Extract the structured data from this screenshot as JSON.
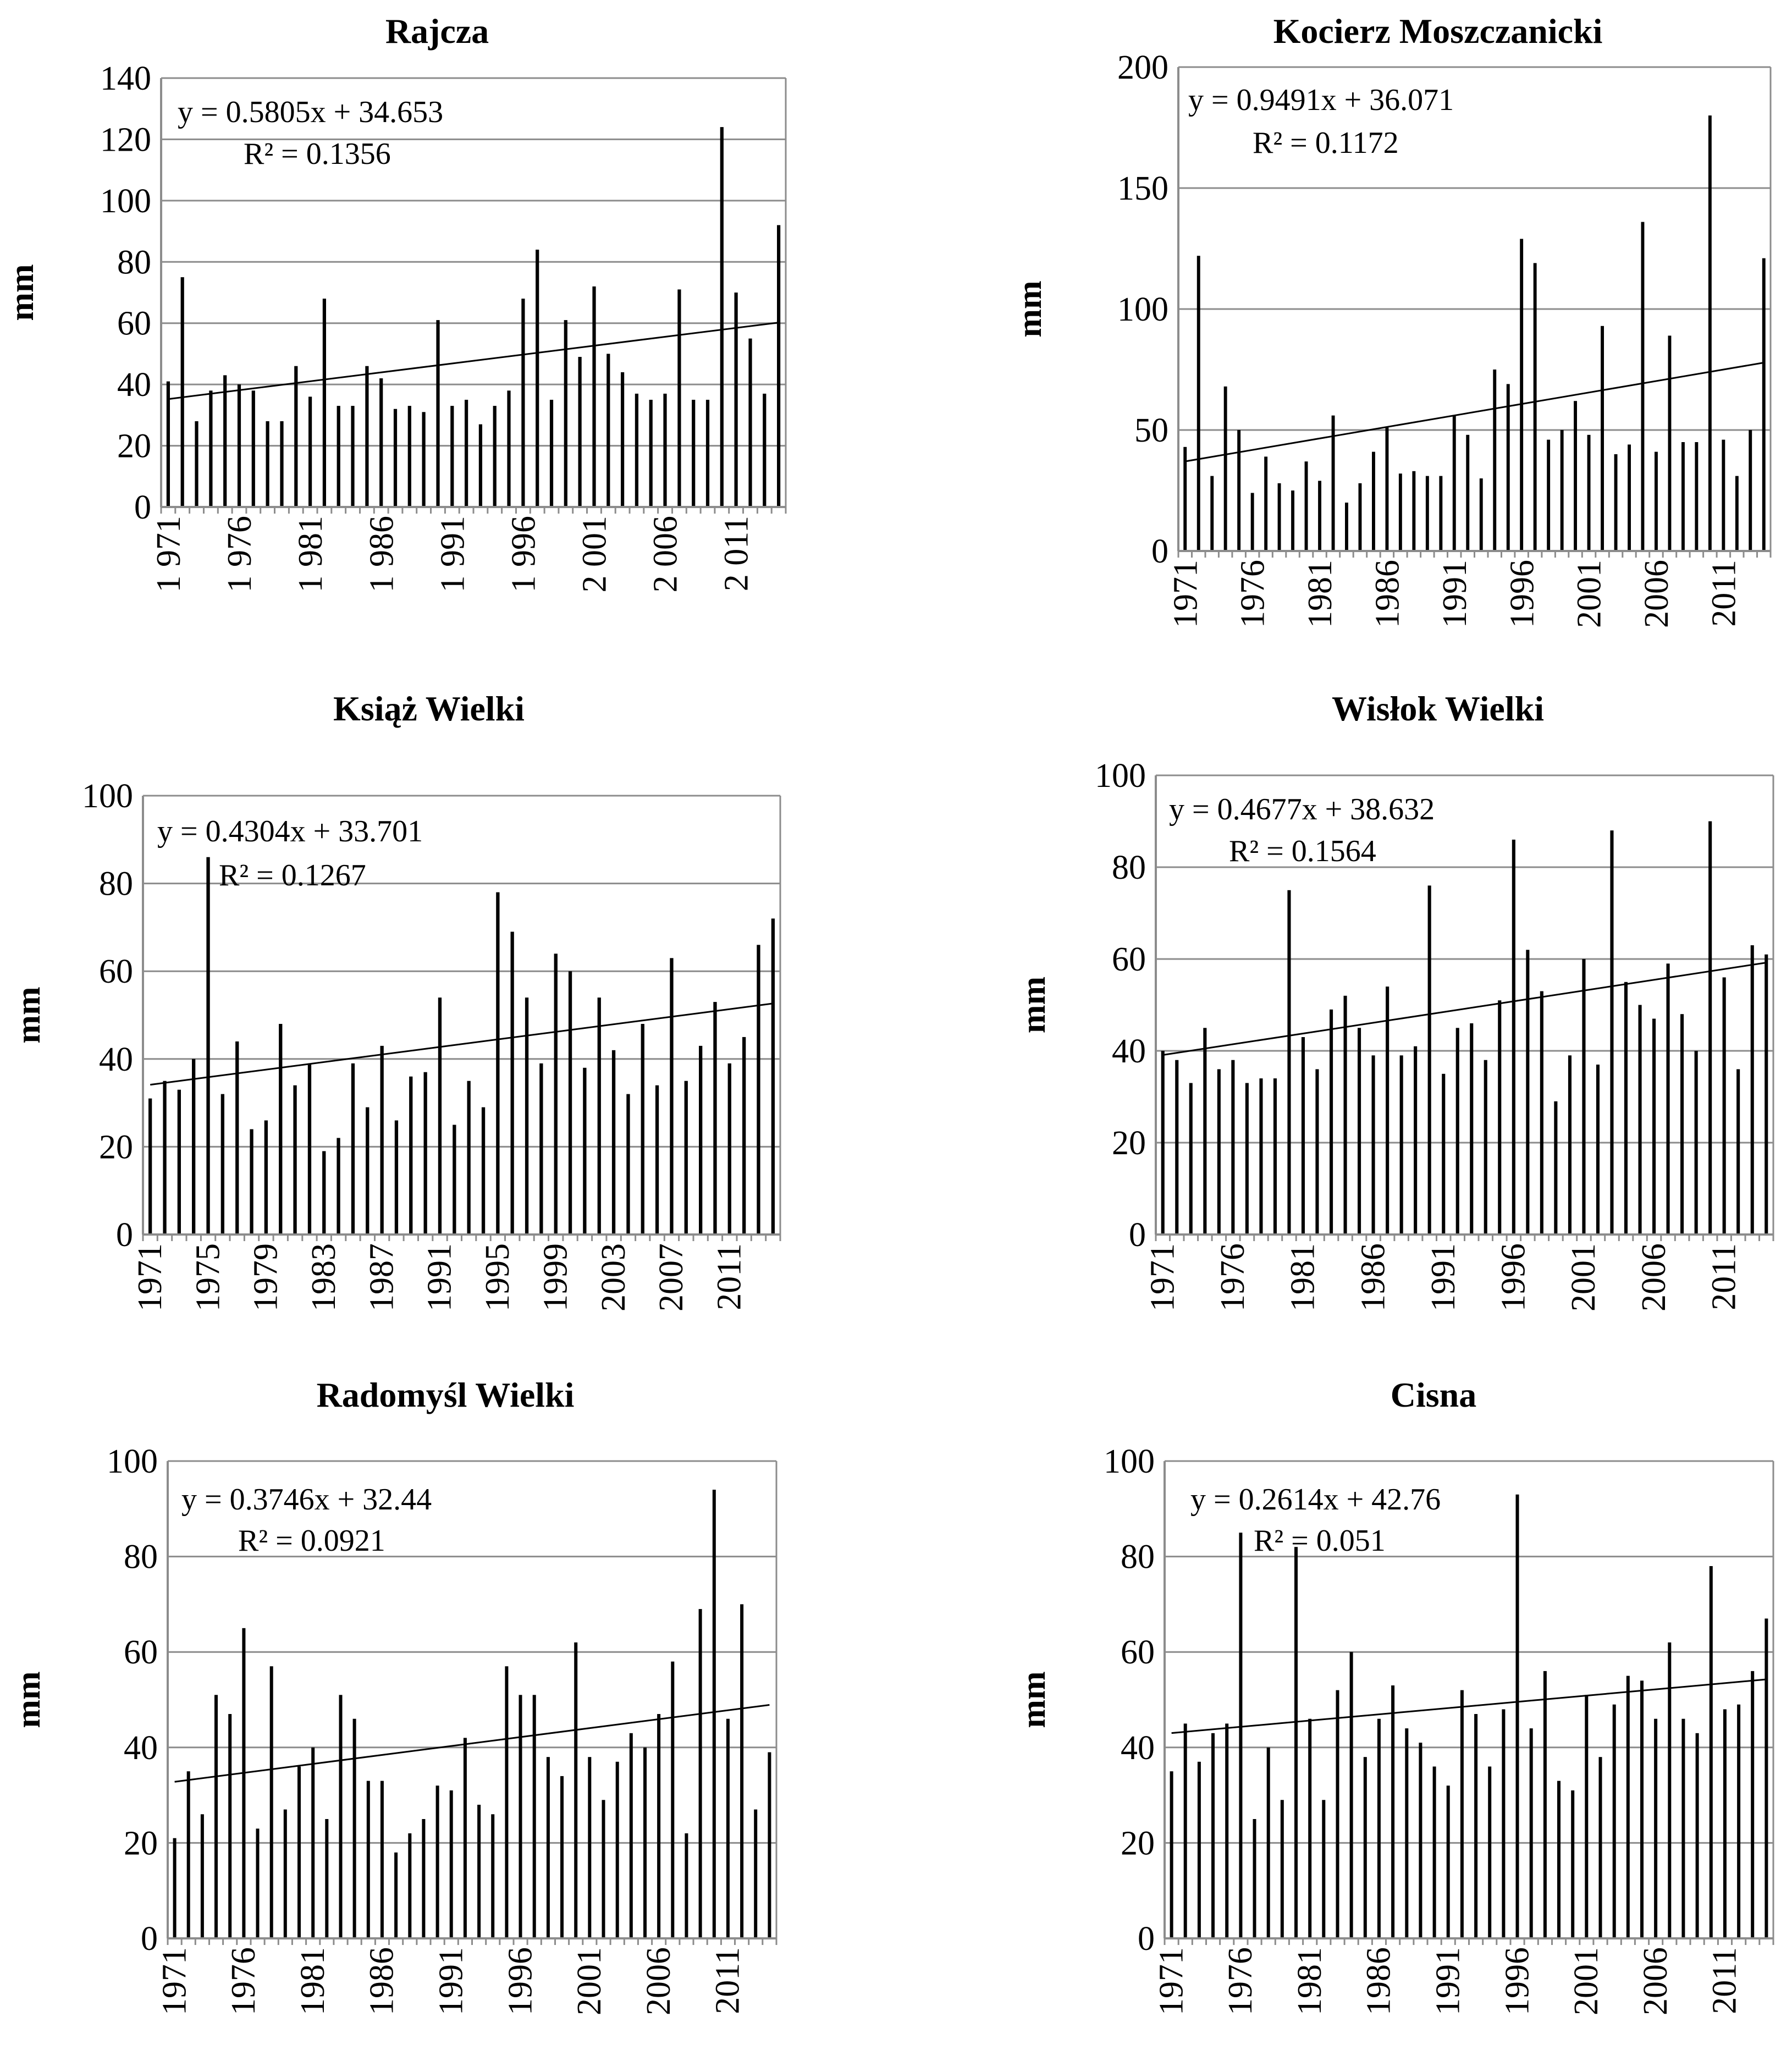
{
  "chart_data": [
    {
      "type": "bar",
      "title": "Rajcza",
      "ylabel": "mm",
      "xlabel": "",
      "ylim": [
        0,
        140
      ],
      "yticks": [
        0,
        20,
        40,
        60,
        80,
        100,
        120,
        140
      ],
      "x_start": 1971,
      "x_tick_years": [
        1971,
        1976,
        1981,
        1986,
        1991,
        1996,
        2001,
        2006,
        2011
      ],
      "x_tick_labels": [
        "1 971",
        "1 976",
        "1 981",
        "1 986",
        "1 991",
        "1 996",
        "2 001",
        "2 006",
        "2 011"
      ],
      "values": [
        41,
        75,
        28,
        38,
        43,
        40,
        38,
        28,
        28,
        46,
        36,
        68,
        33,
        33,
        46,
        42,
        32,
        33,
        31,
        61,
        33,
        35,
        27,
        33,
        38,
        68,
        84,
        35,
        61,
        49,
        72,
        50,
        44,
        37,
        35,
        37,
        71,
        35,
        35,
        124,
        70,
        55,
        37,
        92
      ],
      "trendline": {
        "slope": 0.5805,
        "intercept": 34.653
      },
      "equation": "y = 0.5805x + 34.653",
      "r2": "R² = 0.1356",
      "grid": true
    },
    {
      "type": "bar",
      "title": "Kocierz Moszczanicki",
      "ylabel": "mm",
      "xlabel": "",
      "ylim": [
        0,
        200
      ],
      "yticks": [
        0,
        50,
        100,
        150,
        200
      ],
      "x_start": 1971,
      "x_tick_years": [
        1971,
        1976,
        1981,
        1986,
        1991,
        1996,
        2001,
        2006,
        2011
      ],
      "x_tick_labels": [
        "1971",
        "1976",
        "1981",
        "1986",
        "1991",
        "1996",
        "2001",
        "2006",
        "2011"
      ],
      "values": [
        43,
        122,
        31,
        68,
        50,
        24,
        39,
        28,
        25,
        37,
        29,
        56,
        20,
        28,
        41,
        51,
        32,
        33,
        31,
        31,
        56,
        48,
        30,
        75,
        69,
        129,
        119,
        46,
        50,
        62,
        48,
        93,
        40,
        44,
        136,
        41,
        89,
        45,
        45,
        180,
        46,
        31,
        50,
        121
      ],
      "trendline": {
        "slope": 0.9491,
        "intercept": 36.071
      },
      "equation": "y = 0.9491x + 36.071",
      "r2": "R² = 0.1172",
      "grid": true
    },
    {
      "type": "bar",
      "title": "Książ Wielki",
      "ylabel": "mm",
      "xlabel": "",
      "ylim": [
        0,
        100
      ],
      "yticks": [
        0,
        20,
        40,
        60,
        80,
        100
      ],
      "x_start": 1971,
      "x_tick_years": [
        1971,
        1975,
        1979,
        1983,
        1987,
        1991,
        1995,
        1999,
        2003,
        2007,
        2011
      ],
      "x_tick_labels": [
        "1971",
        "1975",
        "1979",
        "1983",
        "1987",
        "1991",
        "1995",
        "1999",
        "2003",
        "2007",
        "2011"
      ],
      "values": [
        31,
        35,
        33,
        40,
        86,
        32,
        44,
        24,
        26,
        48,
        34,
        39,
        19,
        22,
        39,
        29,
        43,
        26,
        36,
        37,
        54,
        25,
        35,
        29,
        78,
        69,
        54,
        39,
        64,
        60,
        38,
        54,
        42,
        32,
        48,
        34,
        63,
        35,
        43,
        53,
        39,
        45,
        66,
        72
      ],
      "trendline": {
        "slope": 0.4304,
        "intercept": 33.701
      },
      "equation": "y = 0.4304x + 33.701",
      "r2": "R² = 0.1267",
      "grid": true
    },
    {
      "type": "bar",
      "title": "Wisłok Wielki",
      "ylabel": "mm",
      "xlabel": "",
      "ylim": [
        0,
        100
      ],
      "yticks": [
        0,
        20,
        40,
        60,
        80,
        100
      ],
      "x_start": 1971,
      "x_tick_years": [
        1971,
        1976,
        1981,
        1986,
        1991,
        1996,
        2001,
        2006,
        2011
      ],
      "x_tick_labels": [
        "1971",
        "1976",
        "1981",
        "1986",
        "1991",
        "1996",
        "2001",
        "2006",
        "2011"
      ],
      "values": [
        40,
        38,
        33,
        45,
        36,
        38,
        33,
        34,
        34,
        75,
        43,
        36,
        49,
        52,
        45,
        39,
        54,
        39,
        41,
        76,
        35,
        45,
        46,
        38,
        51,
        86,
        62,
        53,
        29,
        39,
        60,
        37,
        88,
        55,
        50,
        47,
        59,
        48,
        40,
        90,
        56,
        36,
        63,
        61
      ],
      "trendline": {
        "slope": 0.4677,
        "intercept": 38.632
      },
      "equation": "y = 0.4677x + 38.632",
      "r2": "R² = 0.1564",
      "grid": true
    },
    {
      "type": "bar",
      "title": "Radomyśl Wielki",
      "ylabel": "mm",
      "xlabel": "",
      "ylim": [
        0,
        100
      ],
      "yticks": [
        0,
        20,
        40,
        60,
        80,
        100
      ],
      "x_start": 1971,
      "x_tick_years": [
        1971,
        1976,
        1981,
        1986,
        1991,
        1996,
        2001,
        2006,
        2011
      ],
      "x_tick_labels": [
        "1971",
        "1976",
        "1981",
        "1986",
        "1991",
        "1996",
        "2001",
        "2006",
        "2011"
      ],
      "values": [
        21,
        35,
        26,
        51,
        47,
        65,
        23,
        57,
        27,
        36,
        40,
        25,
        51,
        46,
        33,
        33,
        18,
        22,
        25,
        32,
        31,
        42,
        28,
        26,
        57,
        51,
        51,
        38,
        34,
        62,
        38,
        29,
        37,
        43,
        40,
        47,
        58,
        22,
        69,
        94,
        46,
        70,
        27,
        39
      ],
      "trendline": {
        "slope": 0.3746,
        "intercept": 32.44
      },
      "equation": "y = 0.3746x + 32.44",
      "r2": "R² = 0.0921",
      "grid": true
    },
    {
      "type": "bar",
      "title": "Cisna",
      "ylabel": "mm",
      "xlabel": "",
      "ylim": [
        0,
        100
      ],
      "yticks": [
        0,
        20,
        40,
        60,
        80,
        100
      ],
      "x_start": 1971,
      "x_tick_years": [
        1971,
        1976,
        1981,
        1986,
        1991,
        1996,
        2001,
        2006,
        2011
      ],
      "x_tick_labels": [
        "1971",
        "1976",
        "1981",
        "1986",
        "1991",
        "1996",
        "2001",
        "2006",
        "2011"
      ],
      "values": [
        35,
        45,
        37,
        43,
        45,
        85,
        25,
        40,
        29,
        82,
        46,
        29,
        52,
        60,
        38,
        46,
        53,
        44,
        41,
        36,
        32,
        52,
        47,
        36,
        48,
        93,
        44,
        56,
        33,
        31,
        51,
        38,
        49,
        55,
        54,
        46,
        62,
        46,
        43,
        78,
        48,
        49,
        56,
        67
      ],
      "trendline": {
        "slope": 0.2614,
        "intercept": 42.76
      },
      "equation": "y = 0.2614x + 42.76",
      "r2": "R² = 0.051",
      "grid": true
    }
  ]
}
